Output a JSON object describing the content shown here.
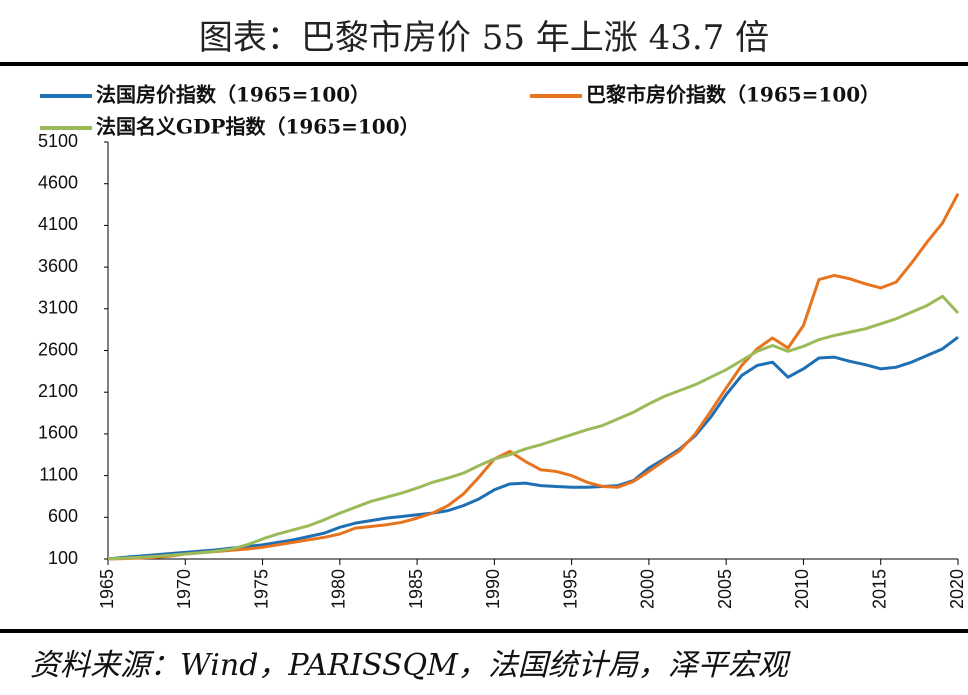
{
  "chart_data": {
    "type": "line",
    "title": "图表：巴黎市房价 55 年上涨 43.7 倍",
    "source": "资料来源：Wind，PARISSQM，法国统计局，泽平宏观",
    "x": [
      1965,
      1966,
      1967,
      1968,
      1969,
      1970,
      1971,
      1972,
      1973,
      1974,
      1975,
      1976,
      1977,
      1978,
      1979,
      1980,
      1981,
      1982,
      1983,
      1984,
      1985,
      1986,
      1987,
      1988,
      1989,
      1990,
      1991,
      1992,
      1993,
      1994,
      1995,
      1996,
      1997,
      1998,
      1999,
      2000,
      2001,
      2002,
      2003,
      2004,
      2005,
      2006,
      2007,
      2008,
      2009,
      2010,
      2011,
      2012,
      2013,
      2014,
      2015,
      2016,
      2017,
      2018,
      2019,
      2020
    ],
    "series": [
      {
        "name": "法国房价指数（1965=100）",
        "color": "#1f6fb5",
        "values": [
          100,
          120,
          135,
          150,
          165,
          180,
          195,
          210,
          230,
          250,
          270,
          300,
          330,
          370,
          410,
          480,
          530,
          560,
          590,
          610,
          630,
          650,
          680,
          740,
          820,
          930,
          1000,
          1010,
          980,
          970,
          960,
          960,
          970,
          980,
          1040,
          1190,
          1300,
          1420,
          1580,
          1800,
          2070,
          2300,
          2420,
          2460,
          2280,
          2380,
          2510,
          2520,
          2470,
          2430,
          2380,
          2400,
          2460,
          2540,
          2620,
          2760
        ]
      },
      {
        "name": "巴黎市房价指数（1965=100）",
        "color": "#e8731f",
        "values": [
          100,
          105,
          112,
          120,
          135,
          160,
          175,
          190,
          205,
          220,
          240,
          270,
          300,
          330,
          360,
          400,
          470,
          490,
          510,
          540,
          590,
          650,
          740,
          880,
          1080,
          1300,
          1390,
          1270,
          1170,
          1150,
          1100,
          1020,
          970,
          960,
          1030,
          1150,
          1280,
          1400,
          1600,
          1870,
          2150,
          2420,
          2620,
          2750,
          2630,
          2900,
          3450,
          3500,
          3460,
          3400,
          3350,
          3420,
          3650,
          3900,
          4130,
          4480
        ]
      },
      {
        "name": "法国名义GDP指数（1965=100）",
        "color": "#9bbb59",
        "values": [
          100,
          110,
          120,
          130,
          145,
          160,
          175,
          195,
          220,
          270,
          340,
          400,
          450,
          500,
          570,
          650,
          720,
          790,
          840,
          890,
          950,
          1020,
          1070,
          1130,
          1220,
          1300,
          1350,
          1420,
          1470,
          1530,
          1590,
          1650,
          1700,
          1780,
          1860,
          1960,
          2050,
          2120,
          2190,
          2280,
          2370,
          2480,
          2590,
          2660,
          2590,
          2650,
          2730,
          2780,
          2820,
          2860,
          2920,
          2980,
          3060,
          3140,
          3250,
          3050
        ]
      }
    ],
    "xlim": [
      1965,
      2020
    ],
    "xticks": [
      1965,
      1970,
      1975,
      1980,
      1985,
      1990,
      1995,
      2000,
      2005,
      2010,
      2015,
      2020
    ],
    "ylim": [
      100,
      5100
    ],
    "yticks": [
      100,
      600,
      1100,
      1600,
      2100,
      2600,
      3100,
      3600,
      4100,
      4600,
      5100
    ]
  }
}
